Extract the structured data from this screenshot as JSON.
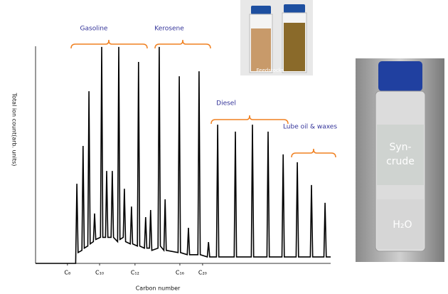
{
  "chart_data": {
    "type": "line",
    "y_label": "Total ion count(arb. units)",
    "x_label": "Carbon number",
    "color": "#000000",
    "xlim": [
      0,
      100
    ],
    "ylim": [
      0,
      100
    ],
    "xticks": [
      {
        "value": 10.8,
        "label": "C₈"
      },
      {
        "value": 21.7,
        "label": "C₁₀"
      },
      {
        "value": 33.7,
        "label": "C₁₂"
      },
      {
        "value": 48.9,
        "label": "C₁₆"
      },
      {
        "value": 56.6,
        "label": "C₂₀"
      }
    ],
    "x": [
      0,
      13.6,
      14.0,
      14.4,
      15.7,
      16.1,
      16.5,
      17.7,
      18.1,
      18.5,
      19.6,
      20.0,
      20.4,
      22.0,
      22.4,
      22.8,
      23.7,
      24.1,
      24.5,
      25.6,
      26.0,
      26.4,
      27.8,
      28.2,
      28.6,
      29.7,
      30.1,
      30.5,
      32.1,
      32.5,
      32.9,
      34.5,
      34.9,
      35.3,
      36.9,
      37.3,
      37.7,
      38.6,
      39.0,
      39.4,
      41.5,
      41.9,
      42.3,
      43.5,
      43.9,
      44.3,
      48.3,
      48.7,
      49.1,
      51.4,
      51.8,
      52.2,
      55.0,
      55.4,
      55.8,
      58.2,
      58.6,
      59.0,
      61.3,
      61.7,
      62.1,
      67.3,
      67.7,
      68.1,
      73.1,
      73.5,
      73.9,
      78.4,
      78.8,
      79.2,
      83.5,
      83.9,
      84.3,
      88.3,
      88.7,
      89.1,
      93.1,
      93.5,
      93.9,
      97.7,
      98.1,
      98.5,
      100
    ],
    "values": [
      0,
      0,
      36.7,
      5,
      6,
      54.1,
      7,
      8,
      79.3,
      9,
      10,
      23,
      11,
      12,
      99.7,
      12,
      12,
      42.6,
      12,
      12,
      42.6,
      12,
      10,
      99.7,
      11,
      12,
      34.4,
      10,
      9,
      26.2,
      9,
      8,
      92.8,
      8,
      7,
      21.3,
      7,
      7,
      24.6,
      6,
      7,
      99.7,
      8,
      6,
      29.5,
      6,
      5,
      86.2,
      5,
      4,
      16.4,
      4,
      4,
      88.5,
      4,
      3,
      9.8,
      3,
      3,
      63.9,
      3,
      3,
      60.7,
      3,
      3,
      63.9,
      3,
      3,
      60.7,
      3,
      3,
      50.2,
      3,
      3,
      46.6,
      3,
      3,
      36.1,
      3,
      3,
      27.9,
      3,
      3
    ],
    "annotations": [
      "Gasoline",
      "Kerosene",
      "Diesel",
      "Lube oil & waxes"
    ],
    "photos": {
      "feedstock_label": "Feedstocks",
      "vial_lines": [
        "Syn-",
        "crude"
      ],
      "water_label": "H₂O"
    }
  }
}
